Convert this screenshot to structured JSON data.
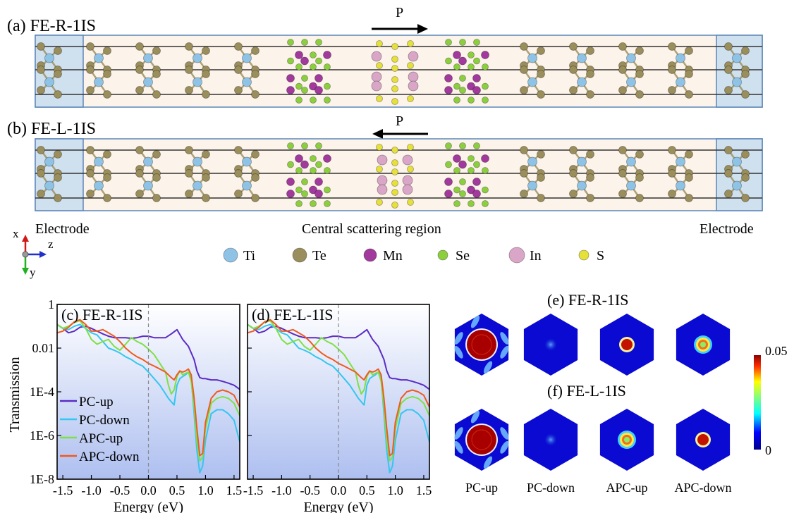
{
  "colors": {
    "Ti": "#8fc3e6",
    "Te": "#9a8e5c",
    "Mn": "#a13a9c",
    "Se": "#8ccf3e",
    "In": "#d9a6c7",
    "S": "#e5e03a",
    "pc_up": "#5b2bc4",
    "pc_down": "#36c6ef",
    "apc_up": "#7ee046",
    "apc_down": "#f05a1e",
    "electrode_fill": "#cfe0ef",
    "scatter_fill": "#fcf3ea",
    "frame": "#5b86b8"
  },
  "structure": {
    "panel_a": {
      "label": "(a) FE-R-1IS",
      "p_label": "P",
      "direction": "right"
    },
    "panel_b": {
      "label": "(b) FE-L-1IS",
      "p_label": "P",
      "direction": "left"
    },
    "electrode_left": "Electrode",
    "central_region": "Central scattering region",
    "electrode_right": "Electrode",
    "axes": {
      "x": "x",
      "z": "z",
      "y": "y"
    },
    "legend": [
      {
        "symbol": "Ti",
        "color_key": "Ti"
      },
      {
        "symbol": "Te",
        "color_key": "Te"
      },
      {
        "symbol": "Mn",
        "color_key": "Mn"
      },
      {
        "symbol": "Se",
        "color_key": "Se"
      },
      {
        "symbol": "In",
        "color_key": "In"
      },
      {
        "symbol": "S",
        "color_key": "S"
      }
    ]
  },
  "chart_data": [
    {
      "type": "line",
      "title": "(c) FE-R-1IS",
      "xlabel": "Energy (eV)",
      "ylabel": "Transmission",
      "xlim": [
        -1.6,
        1.6
      ],
      "ylim": [
        1e-08,
        1
      ],
      "log_y": true,
      "x_ticks": [
        -1.5,
        -1.0,
        -0.5,
        0.0,
        0.5,
        1.0,
        1.5
      ],
      "x_tick_labels": [
        "-1.5",
        "-1.0",
        "-0.5",
        "0.0",
        "0.5",
        "1.0",
        "1.5"
      ],
      "y_ticks": [
        1,
        0.01,
        0.0001,
        1e-06,
        1e-08
      ],
      "y_tick_labels": [
        "1",
        "0.01",
        "1E-4",
        "1E-6",
        "1E-8"
      ],
      "legend": [
        "PC-up",
        "PC-down",
        "APC-up",
        "APC-down"
      ],
      "vline_x": 0.0,
      "series": [
        {
          "name": "PC-up",
          "color_key": "pc_up",
          "x": [
            -1.6,
            -1.5,
            -1.4,
            -1.3,
            -1.2,
            -1.1,
            -1.0,
            -0.9,
            -0.8,
            -0.7,
            -0.6,
            -0.5,
            -0.4,
            -0.3,
            -0.2,
            -0.1,
            0.0,
            0.1,
            0.2,
            0.3,
            0.4,
            0.5,
            0.6,
            0.7,
            0.8,
            0.85,
            0.9,
            0.95,
            1.0,
            1.1,
            1.2,
            1.3,
            1.4,
            1.5,
            1.6
          ],
          "y": [
            0.12,
            0.08,
            0.05,
            0.06,
            0.09,
            0.1,
            0.08,
            0.06,
            0.045,
            0.035,
            0.03,
            0.03,
            0.03,
            0.028,
            0.03,
            0.035,
            0.035,
            0.03,
            0.03,
            0.03,
            0.045,
            0.07,
            0.025,
            0.012,
            0.003,
            0.0009,
            0.00045,
            0.0004,
            0.0004,
            0.00035,
            0.00035,
            0.0003,
            0.00025,
            0.0002,
            0.00013
          ]
        },
        {
          "name": "PC-down",
          "color_key": "pc_down",
          "x": [
            -1.6,
            -1.5,
            -1.4,
            -1.3,
            -1.2,
            -1.1,
            -1.0,
            -0.9,
            -0.8,
            -0.7,
            -0.6,
            -0.5,
            -0.4,
            -0.3,
            -0.2,
            -0.1,
            0.0,
            0.1,
            0.2,
            0.3,
            0.35,
            0.4,
            0.45,
            0.5,
            0.55,
            0.6,
            0.65,
            0.7,
            0.75,
            0.8,
            0.85,
            0.9,
            0.95,
            1.0,
            1.1,
            1.2,
            1.3,
            1.4,
            1.5,
            1.6
          ],
          "y": [
            0.12,
            0.08,
            0.07,
            0.1,
            0.12,
            0.08,
            0.05,
            0.04,
            0.02,
            0.01,
            0.008,
            0.006,
            0.004,
            0.003,
            0.002,
            0.0015,
            0.0008,
            0.0004,
            0.0002,
            8e-05,
            5e-05,
            3.5e-05,
            2.5e-05,
            0.0002,
            0.0004,
            0.0005,
            0.0006,
            0.0008,
            0.0004,
            1e-05,
            2e-07,
            2e-08,
            4e-08,
            6e-07,
            1e-05,
            1.5e-05,
            1.5e-05,
            1e-05,
            5e-06,
            5e-07
          ]
        },
        {
          "name": "APC-up",
          "color_key": "apc_up",
          "x": [
            -1.6,
            -1.5,
            -1.4,
            -1.3,
            -1.2,
            -1.1,
            -1.0,
            -0.9,
            -0.8,
            -0.7,
            -0.6,
            -0.5,
            -0.4,
            -0.3,
            -0.2,
            -0.1,
            0.0,
            0.1,
            0.2,
            0.3,
            0.35,
            0.4,
            0.45,
            0.5,
            0.55,
            0.6,
            0.65,
            0.7,
            0.75,
            0.8,
            0.85,
            0.9,
            0.95,
            1.0,
            1.1,
            1.2,
            1.3,
            1.4,
            1.5,
            1.6
          ],
          "y": [
            0.12,
            0.08,
            0.1,
            0.15,
            0.18,
            0.08,
            0.025,
            0.015,
            0.02,
            0.025,
            0.012,
            0.008,
            0.015,
            0.03,
            0.02,
            0.015,
            0.009,
            0.005,
            0.002,
            0.0008,
            0.0002,
            8e-05,
            0.00012,
            0.0005,
            0.0009,
            0.0006,
            0.0007,
            0.0008,
            0.0003,
            2e-05,
            5e-07,
            7e-08,
            1e-07,
            2e-06,
            3e-05,
            5e-05,
            6e-05,
            5e-05,
            3e-05,
            8e-06
          ]
        },
        {
          "name": "APC-down",
          "color_key": "apc_down",
          "x": [
            -1.6,
            -1.5,
            -1.4,
            -1.3,
            -1.2,
            -1.1,
            -1.0,
            -0.9,
            -0.8,
            -0.7,
            -0.6,
            -0.5,
            -0.4,
            -0.3,
            -0.2,
            -0.1,
            0.0,
            0.1,
            0.2,
            0.3,
            0.35,
            0.4,
            0.45,
            0.5,
            0.55,
            0.6,
            0.65,
            0.7,
            0.75,
            0.8,
            0.85,
            0.9,
            0.95,
            1.0,
            1.1,
            1.2,
            1.3,
            1.4,
            1.5,
            1.6
          ],
          "y": [
            0.05,
            0.06,
            0.09,
            0.16,
            0.2,
            0.12,
            0.06,
            0.06,
            0.07,
            0.05,
            0.035,
            0.02,
            0.01,
            0.006,
            0.004,
            0.003,
            0.002,
            0.0015,
            0.0011,
            0.0008,
            0.0006,
            0.00045,
            0.00035,
            0.0006,
            0.0009,
            0.0008,
            0.0009,
            0.0011,
            0.0006,
            5e-05,
            2e-06,
            1.2e-07,
            1.5e-07,
            4e-06,
            5e-05,
            0.0001,
            0.00012,
            0.0001,
            7e-05,
            2e-05
          ]
        }
      ]
    },
    {
      "type": "line",
      "title": "(d) FE-L-1IS",
      "xlabel": "Energy (eV)",
      "ylabel": "",
      "xlim": [
        -1.6,
        1.6
      ],
      "ylim": [
        1e-08,
        1
      ],
      "log_y": true,
      "x_ticks": [
        -1.5,
        -1.0,
        -0.5,
        0.0,
        0.5,
        1.0,
        1.5
      ],
      "x_tick_labels": [
        "-1.5",
        "-1.0",
        "-0.5",
        "0.0",
        "0.5",
        "1.0",
        "1.5"
      ],
      "y_ticks": [
        1,
        0.01,
        0.0001,
        1e-06,
        1e-08
      ],
      "y_tick_labels": [],
      "legend": [],
      "vline_x": 0.0,
      "series": [
        {
          "name": "PC-up",
          "color_key": "pc_up",
          "x": [
            -1.6,
            -1.5,
            -1.4,
            -1.3,
            -1.2,
            -1.1,
            -1.0,
            -0.9,
            -0.8,
            -0.7,
            -0.6,
            -0.5,
            -0.4,
            -0.3,
            -0.2,
            -0.1,
            0.0,
            0.1,
            0.2,
            0.3,
            0.4,
            0.5,
            0.6,
            0.7,
            0.8,
            0.85,
            0.9,
            0.95,
            1.0,
            1.1,
            1.2,
            1.3,
            1.4,
            1.5,
            1.6
          ],
          "y": [
            0.12,
            0.08,
            0.05,
            0.06,
            0.09,
            0.1,
            0.08,
            0.06,
            0.045,
            0.035,
            0.03,
            0.03,
            0.03,
            0.028,
            0.03,
            0.035,
            0.035,
            0.03,
            0.03,
            0.03,
            0.045,
            0.07,
            0.025,
            0.012,
            0.003,
            0.0009,
            0.00045,
            0.0004,
            0.0004,
            0.00035,
            0.00035,
            0.0003,
            0.00025,
            0.0002,
            0.00013
          ]
        },
        {
          "name": "PC-down",
          "color_key": "pc_down",
          "x": [
            -1.6,
            -1.5,
            -1.4,
            -1.3,
            -1.2,
            -1.1,
            -1.0,
            -0.9,
            -0.8,
            -0.7,
            -0.6,
            -0.5,
            -0.4,
            -0.3,
            -0.2,
            -0.1,
            0.0,
            0.1,
            0.2,
            0.3,
            0.35,
            0.4,
            0.45,
            0.5,
            0.55,
            0.6,
            0.65,
            0.7,
            0.75,
            0.8,
            0.85,
            0.9,
            0.95,
            1.0,
            1.1,
            1.2,
            1.3,
            1.4,
            1.5,
            1.6
          ],
          "y": [
            0.12,
            0.08,
            0.07,
            0.1,
            0.12,
            0.08,
            0.05,
            0.04,
            0.02,
            0.01,
            0.008,
            0.006,
            0.004,
            0.003,
            0.002,
            0.0015,
            0.0008,
            0.0004,
            0.0002,
            8e-05,
            5e-05,
            3.5e-05,
            2.5e-05,
            0.0002,
            0.0004,
            0.0005,
            0.0006,
            0.0008,
            0.0004,
            1e-05,
            2e-07,
            2e-08,
            4e-08,
            6e-07,
            1e-05,
            1.5e-05,
            1.5e-05,
            1e-05,
            5e-06,
            5e-07
          ]
        },
        {
          "name": "APC-up",
          "color_key": "apc_up",
          "x": [
            -1.6,
            -1.5,
            -1.4,
            -1.3,
            -1.2,
            -1.1,
            -1.0,
            -0.9,
            -0.8,
            -0.7,
            -0.6,
            -0.5,
            -0.4,
            -0.3,
            -0.2,
            -0.1,
            0.0,
            0.1,
            0.2,
            0.3,
            0.35,
            0.4,
            0.45,
            0.5,
            0.55,
            0.6,
            0.65,
            0.7,
            0.75,
            0.8,
            0.85,
            0.9,
            0.95,
            1.0,
            1.1,
            1.2,
            1.3,
            1.4,
            1.5,
            1.6
          ],
          "y": [
            0.12,
            0.08,
            0.1,
            0.15,
            0.18,
            0.08,
            0.025,
            0.015,
            0.02,
            0.025,
            0.012,
            0.008,
            0.015,
            0.03,
            0.02,
            0.015,
            0.009,
            0.005,
            0.002,
            0.0008,
            0.0002,
            8e-05,
            0.00012,
            0.0005,
            0.0009,
            0.0006,
            0.0007,
            0.0008,
            0.0003,
            2e-05,
            5e-07,
            7e-08,
            1e-07,
            2e-06,
            3e-05,
            5e-05,
            6e-05,
            5e-05,
            3e-05,
            8e-06
          ]
        },
        {
          "name": "APC-down",
          "color_key": "apc_down",
          "x": [
            -1.6,
            -1.5,
            -1.4,
            -1.3,
            -1.2,
            -1.1,
            -1.0,
            -0.9,
            -0.8,
            -0.7,
            -0.6,
            -0.5,
            -0.4,
            -0.3,
            -0.2,
            -0.1,
            0.0,
            0.1,
            0.2,
            0.3,
            0.35,
            0.4,
            0.45,
            0.5,
            0.55,
            0.6,
            0.65,
            0.7,
            0.75,
            0.8,
            0.85,
            0.9,
            0.95,
            1.0,
            1.1,
            1.2,
            1.3,
            1.4,
            1.5,
            1.6
          ],
          "y": [
            0.05,
            0.06,
            0.09,
            0.16,
            0.2,
            0.12,
            0.06,
            0.06,
            0.07,
            0.05,
            0.035,
            0.02,
            0.01,
            0.006,
            0.004,
            0.003,
            0.002,
            0.0015,
            0.0011,
            0.0008,
            0.0006,
            0.00045,
            0.00035,
            0.0006,
            0.0009,
            0.0008,
            0.0009,
            0.0011,
            0.0006,
            5e-05,
            2e-06,
            1.2e-07,
            1.5e-07,
            4e-06,
            5e-05,
            0.0001,
            0.00012,
            0.0001,
            7e-05,
            2e-05
          ]
        }
      ]
    },
    {
      "type": "heatmap",
      "titles": [
        "(e) FE-R-1IS",
        "(f) FE-L-1IS"
      ],
      "columns": [
        "PC-up",
        "PC-down",
        "APC-up",
        "APC-down"
      ],
      "colorbar": {
        "min": 0,
        "max": 0.05,
        "min_label": "0",
        "max_label": "0.05"
      }
    }
  ]
}
